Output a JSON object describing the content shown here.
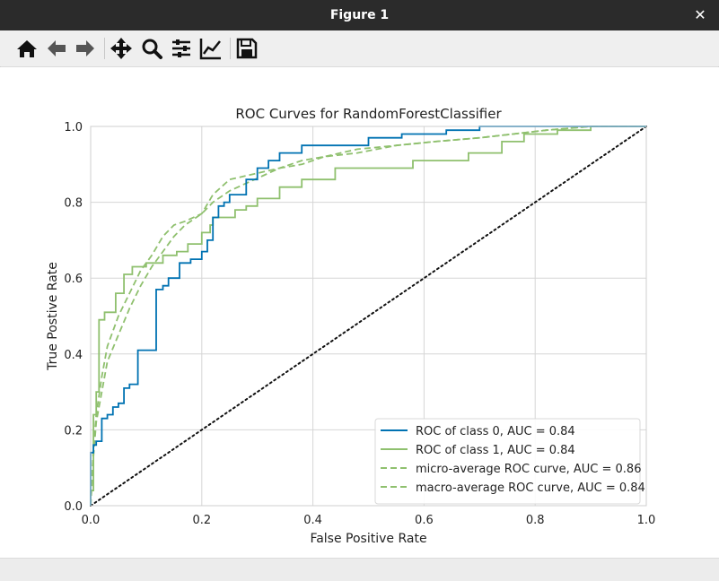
{
  "window": {
    "title": "Figure 1",
    "close_glyph": "✕"
  },
  "toolbar": {
    "buttons": [
      {
        "icon": "home-icon",
        "action": "home"
      },
      {
        "icon": "back-arrow-icon",
        "action": "back"
      },
      {
        "icon": "forward-arrow-icon",
        "action": "forward"
      },
      {
        "icon": "pan-move-icon",
        "action": "pan"
      },
      {
        "icon": "zoom-magnifier-icon",
        "action": "zoom"
      },
      {
        "icon": "configure-subplots-icon",
        "action": "subplots"
      },
      {
        "icon": "edit-axes-icon",
        "action": "customize"
      },
      {
        "icon": "save-floppy-icon",
        "action": "save"
      }
    ]
  },
  "chart_data": {
    "type": "line",
    "title": "ROC Curves for RandomForestClassifier",
    "xlabel": "False Positive Rate",
    "ylabel": "True Postive Rate",
    "xlim": [
      0.0,
      1.0
    ],
    "ylim": [
      0.0,
      1.0
    ],
    "xticks": [
      "0.0",
      "0.2",
      "0.4",
      "0.6",
      "0.8",
      "1.0"
    ],
    "yticks": [
      "0.0",
      "0.2",
      "0.4",
      "0.6",
      "0.8",
      "1.0"
    ],
    "grid": true,
    "legend_position": "lower-right",
    "series": [
      {
        "name": "ROC of class 0, AUC = 0.84",
        "color": "#0072b2",
        "dash": "solid",
        "x": [
          0.0,
          0.0,
          0.005,
          0.005,
          0.01,
          0.01,
          0.02,
          0.02,
          0.03,
          0.03,
          0.04,
          0.04,
          0.05,
          0.05,
          0.06,
          0.06,
          0.07,
          0.07,
          0.085,
          0.085,
          0.1,
          0.1,
          0.118,
          0.118,
          0.13,
          0.13,
          0.14,
          0.14,
          0.16,
          0.16,
          0.18,
          0.18,
          0.2,
          0.2,
          0.21,
          0.21,
          0.22,
          0.22,
          0.23,
          0.23,
          0.24,
          0.24,
          0.25,
          0.25,
          0.28,
          0.28,
          0.3,
          0.3,
          0.32,
          0.32,
          0.34,
          0.34,
          0.38,
          0.38,
          0.5,
          0.5,
          0.56,
          0.56,
          0.64,
          0.64,
          0.7,
          0.7,
          0.78,
          0.78,
          0.84,
          0.84,
          1.0
        ],
        "y": [
          0.0,
          0.14,
          0.14,
          0.16,
          0.16,
          0.17,
          0.17,
          0.23,
          0.23,
          0.24,
          0.24,
          0.26,
          0.26,
          0.27,
          0.27,
          0.31,
          0.31,
          0.32,
          0.32,
          0.41,
          0.41,
          0.41,
          0.41,
          0.57,
          0.57,
          0.58,
          0.58,
          0.6,
          0.6,
          0.64,
          0.64,
          0.65,
          0.65,
          0.67,
          0.67,
          0.7,
          0.7,
          0.76,
          0.76,
          0.79,
          0.79,
          0.8,
          0.8,
          0.82,
          0.82,
          0.86,
          0.86,
          0.89,
          0.89,
          0.91,
          0.91,
          0.93,
          0.93,
          0.95,
          0.95,
          0.97,
          0.97,
          0.98,
          0.98,
          0.99,
          0.99,
          1.0,
          1.0,
          1.0,
          1.0,
          1.0,
          1.0
        ]
      },
      {
        "name": "ROC of class 1, AUC = 0.84",
        "color": "#8fc06e",
        "dash": "solid",
        "x": [
          0.0,
          0.0,
          0.005,
          0.005,
          0.01,
          0.01,
          0.015,
          0.015,
          0.025,
          0.025,
          0.045,
          0.045,
          0.06,
          0.06,
          0.075,
          0.075,
          0.1,
          0.1,
          0.13,
          0.13,
          0.155,
          0.155,
          0.175,
          0.175,
          0.2,
          0.2,
          0.215,
          0.215,
          0.22,
          0.22,
          0.24,
          0.24,
          0.26,
          0.26,
          0.28,
          0.28,
          0.3,
          0.3,
          0.34,
          0.34,
          0.38,
          0.38,
          0.44,
          0.44,
          0.58,
          0.58,
          0.68,
          0.68,
          0.74,
          0.74,
          0.78,
          0.78,
          0.84,
          0.84,
          0.9,
          0.9,
          1.0
        ],
        "y": [
          0.0,
          0.04,
          0.04,
          0.24,
          0.24,
          0.3,
          0.3,
          0.49,
          0.49,
          0.51,
          0.51,
          0.56,
          0.56,
          0.61,
          0.61,
          0.63,
          0.63,
          0.64,
          0.64,
          0.66,
          0.66,
          0.67,
          0.67,
          0.69,
          0.69,
          0.72,
          0.72,
          0.74,
          0.74,
          0.76,
          0.76,
          0.76,
          0.76,
          0.78,
          0.78,
          0.79,
          0.79,
          0.81,
          0.81,
          0.84,
          0.84,
          0.86,
          0.86,
          0.89,
          0.89,
          0.91,
          0.91,
          0.93,
          0.93,
          0.96,
          0.96,
          0.98,
          0.98,
          0.99,
          0.99,
          1.0,
          1.0
        ]
      },
      {
        "name": "micro-average ROC curve, AUC = 0.86",
        "color": "#8fc06e",
        "dash": "dashed",
        "x": [
          0.0,
          0.005,
          0.01,
          0.02,
          0.03,
          0.05,
          0.07,
          0.09,
          0.11,
          0.13,
          0.15,
          0.17,
          0.2,
          0.22,
          0.25,
          0.28,
          0.31,
          0.34,
          0.38,
          0.42,
          0.48,
          0.55,
          0.62,
          0.7,
          0.76,
          0.82,
          0.9,
          1.0
        ],
        "y": [
          0.0,
          0.13,
          0.22,
          0.3,
          0.38,
          0.45,
          0.52,
          0.58,
          0.63,
          0.67,
          0.71,
          0.74,
          0.77,
          0.8,
          0.83,
          0.85,
          0.87,
          0.89,
          0.9,
          0.92,
          0.93,
          0.95,
          0.96,
          0.97,
          0.98,
          0.99,
          1.0,
          1.0
        ]
      },
      {
        "name": "macro-average ROC curve, AUC = 0.84",
        "color": "#8fc06e",
        "dash": "dashed",
        "x": [
          0.0,
          0.005,
          0.01,
          0.02,
          0.03,
          0.05,
          0.07,
          0.09,
          0.11,
          0.13,
          0.15,
          0.17,
          0.2,
          0.22,
          0.25,
          0.28,
          0.31,
          0.34,
          0.38,
          0.42,
          0.48,
          0.55,
          0.62,
          0.7,
          0.76,
          0.82,
          0.9,
          1.0
        ],
        "y": [
          0.0,
          0.15,
          0.24,
          0.34,
          0.42,
          0.5,
          0.56,
          0.62,
          0.66,
          0.71,
          0.74,
          0.75,
          0.77,
          0.82,
          0.86,
          0.87,
          0.88,
          0.89,
          0.91,
          0.92,
          0.94,
          0.95,
          0.96,
          0.97,
          0.98,
          0.99,
          1.0,
          1.0
        ]
      },
      {
        "name": "",
        "color": "#111111",
        "dash": "dotted",
        "x": [
          0.0,
          1.0
        ],
        "y": [
          0.0,
          1.0
        ]
      }
    ]
  }
}
